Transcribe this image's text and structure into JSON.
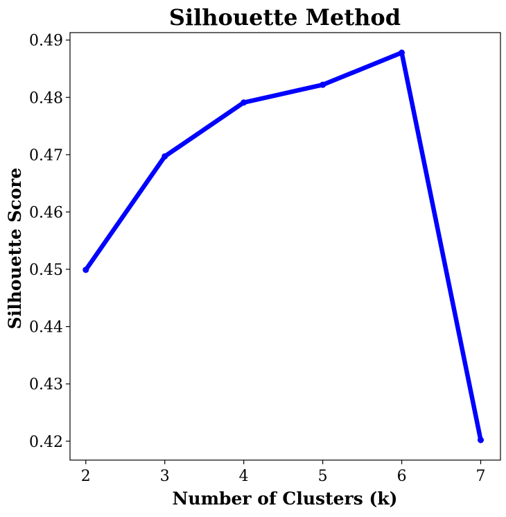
{
  "chart_data": {
    "type": "line",
    "title": "Silhouette Method",
    "xlabel": "Number of Clusters (k)",
    "ylabel": "Silhouette Score",
    "x": [
      2,
      3,
      4,
      5,
      6,
      7
    ],
    "series": [
      {
        "values": [
          0.4499,
          0.4697,
          0.4791,
          0.4822,
          0.4878,
          0.4202
        ],
        "color": "#0000ff",
        "marker": "circle"
      }
    ],
    "xticks": [
      "2",
      "3",
      "4",
      "5",
      "6",
      "7"
    ],
    "yticks": [
      "0.42",
      "0.43",
      "0.44",
      "0.45",
      "0.46",
      "0.47",
      "0.48",
      "0.49"
    ],
    "xlim": [
      1.8,
      7.25
    ],
    "ylim": [
      0.4167,
      0.4913
    ],
    "grid": false
  }
}
